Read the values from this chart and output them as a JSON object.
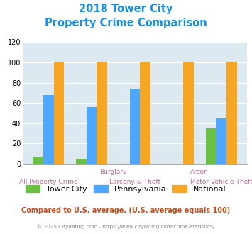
{
  "title_line1": "2018 Tower City",
  "title_line2": "Property Crime Comparison",
  "groups": [
    "All Property Crime",
    "Burglary",
    "Larceny & Theft",
    "Arson",
    "Motor Vehicle Theft"
  ],
  "tower_city": [
    7,
    5,
    0,
    0,
    35
  ],
  "pennsylvania": [
    68,
    56,
    74,
    0,
    45
  ],
  "national": [
    100,
    100,
    100,
    100,
    100
  ],
  "color_tower": "#6abf45",
  "color_penn": "#4da6ff",
  "color_national": "#f5a623",
  "ylim": [
    0,
    120
  ],
  "yticks": [
    0,
    20,
    40,
    60,
    80,
    100,
    120
  ],
  "bar_width": 0.24,
  "bg_color": "#dce9f0",
  "title_color": "#1a8fe0",
  "xlabel_color_top": "#b07090",
  "xlabel_color_bot": "#b07090",
  "legend_fontsize": 8.0,
  "footer_text": "Compared to U.S. average. (U.S. average equals 100)",
  "credit_text": "© 2025 CityRating.com - https://www.cityrating.com/crime-statistics/",
  "footer_color": "#c05020",
  "credit_color": "#888888"
}
